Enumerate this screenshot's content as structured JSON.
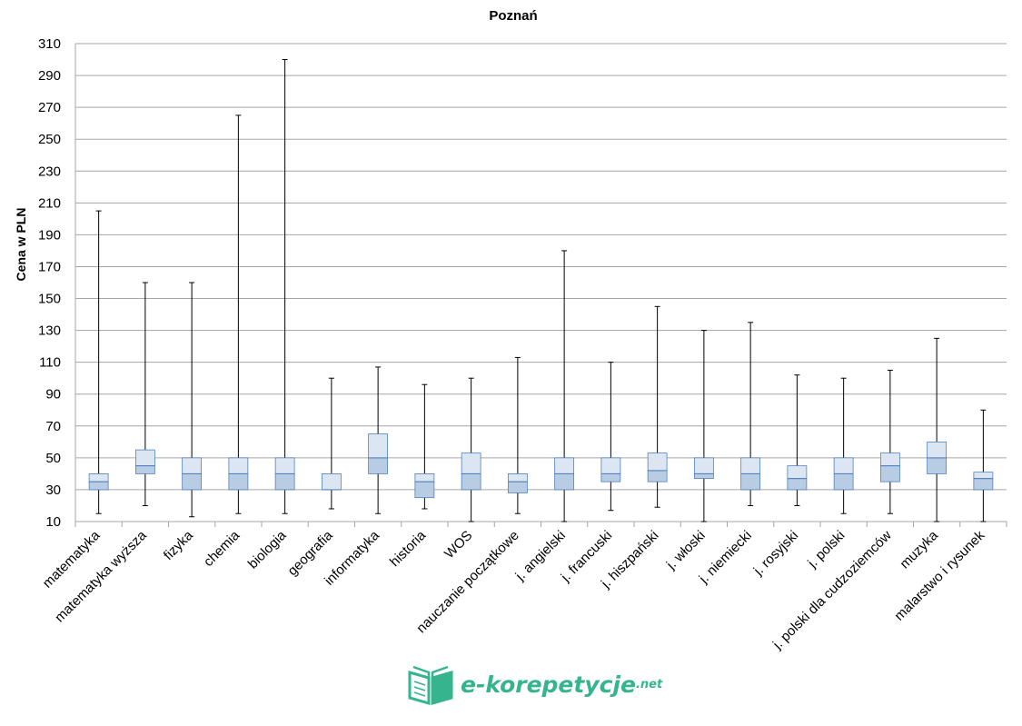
{
  "chart_data": {
    "type": "box",
    "title": "Poznań",
    "ylabel": "Cena w PLN",
    "xlabel": "",
    "ylim": [
      10,
      310
    ],
    "yticks": [
      10,
      30,
      50,
      70,
      90,
      110,
      130,
      150,
      170,
      190,
      210,
      230,
      250,
      270,
      290,
      310
    ],
    "grid": true,
    "colors": {
      "box_lower": "#b8cce4",
      "box_upper": "#dce6f2",
      "box_edge": "#4f81bd",
      "whisker": "#000000",
      "grid": "#a6a6a6"
    },
    "categories": [
      "matematyka",
      "matematyka wyższa",
      "fizyka",
      "chemia",
      "biologia",
      "geografia",
      "informatyka",
      "historia",
      "WOS",
      "nauczanie początkowe",
      "j. angielski",
      "j. francuski",
      "j. hiszpański",
      "j. włoski",
      "j. niemiecki",
      "j. rosyjski",
      "j. polski",
      "j. polski dla cudzoziemców",
      "muzyka",
      "malarstwo i rysunek"
    ],
    "boxes": [
      {
        "min": 15,
        "q1": 30,
        "median": 35,
        "q3": 40,
        "max": 205
      },
      {
        "min": 20,
        "q1": 40,
        "median": 45,
        "q3": 55,
        "max": 160
      },
      {
        "min": 13,
        "q1": 30,
        "median": 40,
        "q3": 50,
        "max": 160
      },
      {
        "min": 15,
        "q1": 30,
        "median": 40,
        "q3": 50,
        "max": 265
      },
      {
        "min": 15,
        "q1": 30,
        "median": 40,
        "q3": 50,
        "max": 300
      },
      {
        "min": 18,
        "q1": 30,
        "median": 30,
        "q3": 40,
        "max": 100
      },
      {
        "min": 15,
        "q1": 40,
        "median": 50,
        "q3": 65,
        "max": 107
      },
      {
        "min": 18,
        "q1": 25,
        "median": 35,
        "q3": 40,
        "max": 96
      },
      {
        "min": 10,
        "q1": 30,
        "median": 40,
        "q3": 53,
        "max": 100
      },
      {
        "min": 15,
        "q1": 28,
        "median": 35,
        "q3": 40,
        "max": 113
      },
      {
        "min": 10,
        "q1": 30,
        "median": 40,
        "q3": 50,
        "max": 180
      },
      {
        "min": 17,
        "q1": 35,
        "median": 40,
        "q3": 50,
        "max": 110
      },
      {
        "min": 19,
        "q1": 35,
        "median": 42,
        "q3": 53,
        "max": 145
      },
      {
        "min": 10,
        "q1": 37,
        "median": 40,
        "q3": 50,
        "max": 130
      },
      {
        "min": 20,
        "q1": 30,
        "median": 40,
        "q3": 50,
        "max": 135
      },
      {
        "min": 20,
        "q1": 30,
        "median": 37,
        "q3": 45,
        "max": 102
      },
      {
        "min": 15,
        "q1": 30,
        "median": 40,
        "q3": 50,
        "max": 100
      },
      {
        "min": 15,
        "q1": 35,
        "median": 45,
        "q3": 53,
        "max": 105
      },
      {
        "min": 10,
        "q1": 40,
        "median": 50,
        "q3": 60,
        "max": 125
      },
      {
        "min": 10,
        "q1": 30,
        "median": 37,
        "q3": 41,
        "max": 80
      }
    ]
  },
  "logo": {
    "name": "e-korepetycje",
    "tld": ".net",
    "icon": "open-book-icon"
  }
}
